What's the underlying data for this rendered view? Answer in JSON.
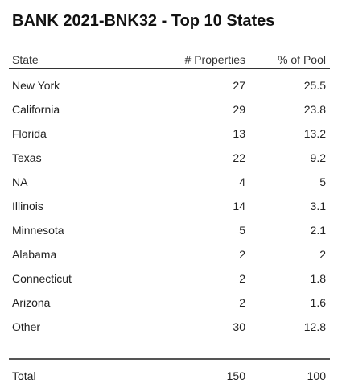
{
  "title": "BANK 2021-BNK32 - Top 10 States",
  "headers": {
    "state": "State",
    "properties": "# Properties",
    "pct_pool": "% of Pool"
  },
  "rows": [
    {
      "state": "New York",
      "properties": "27",
      "pct": "25.5"
    },
    {
      "state": "California",
      "properties": "29",
      "pct": "23.8"
    },
    {
      "state": "Florida",
      "properties": "13",
      "pct": "13.2"
    },
    {
      "state": "Texas",
      "properties": "22",
      "pct": "9.2"
    },
    {
      "state": "NA",
      "properties": "4",
      "pct": "5"
    },
    {
      "state": "Illinois",
      "properties": "14",
      "pct": "3.1"
    },
    {
      "state": "Minnesota",
      "properties": "5",
      "pct": "2.1"
    },
    {
      "state": "Alabama",
      "properties": "2",
      "pct": "2"
    },
    {
      "state": "Connecticut",
      "properties": "2",
      "pct": "1.8"
    },
    {
      "state": "Arizona",
      "properties": "2",
      "pct": "1.6"
    },
    {
      "state": "Other",
      "properties": "30",
      "pct": "12.8"
    }
  ],
  "total": {
    "label": "Total",
    "properties": "150",
    "pct": "100"
  }
}
